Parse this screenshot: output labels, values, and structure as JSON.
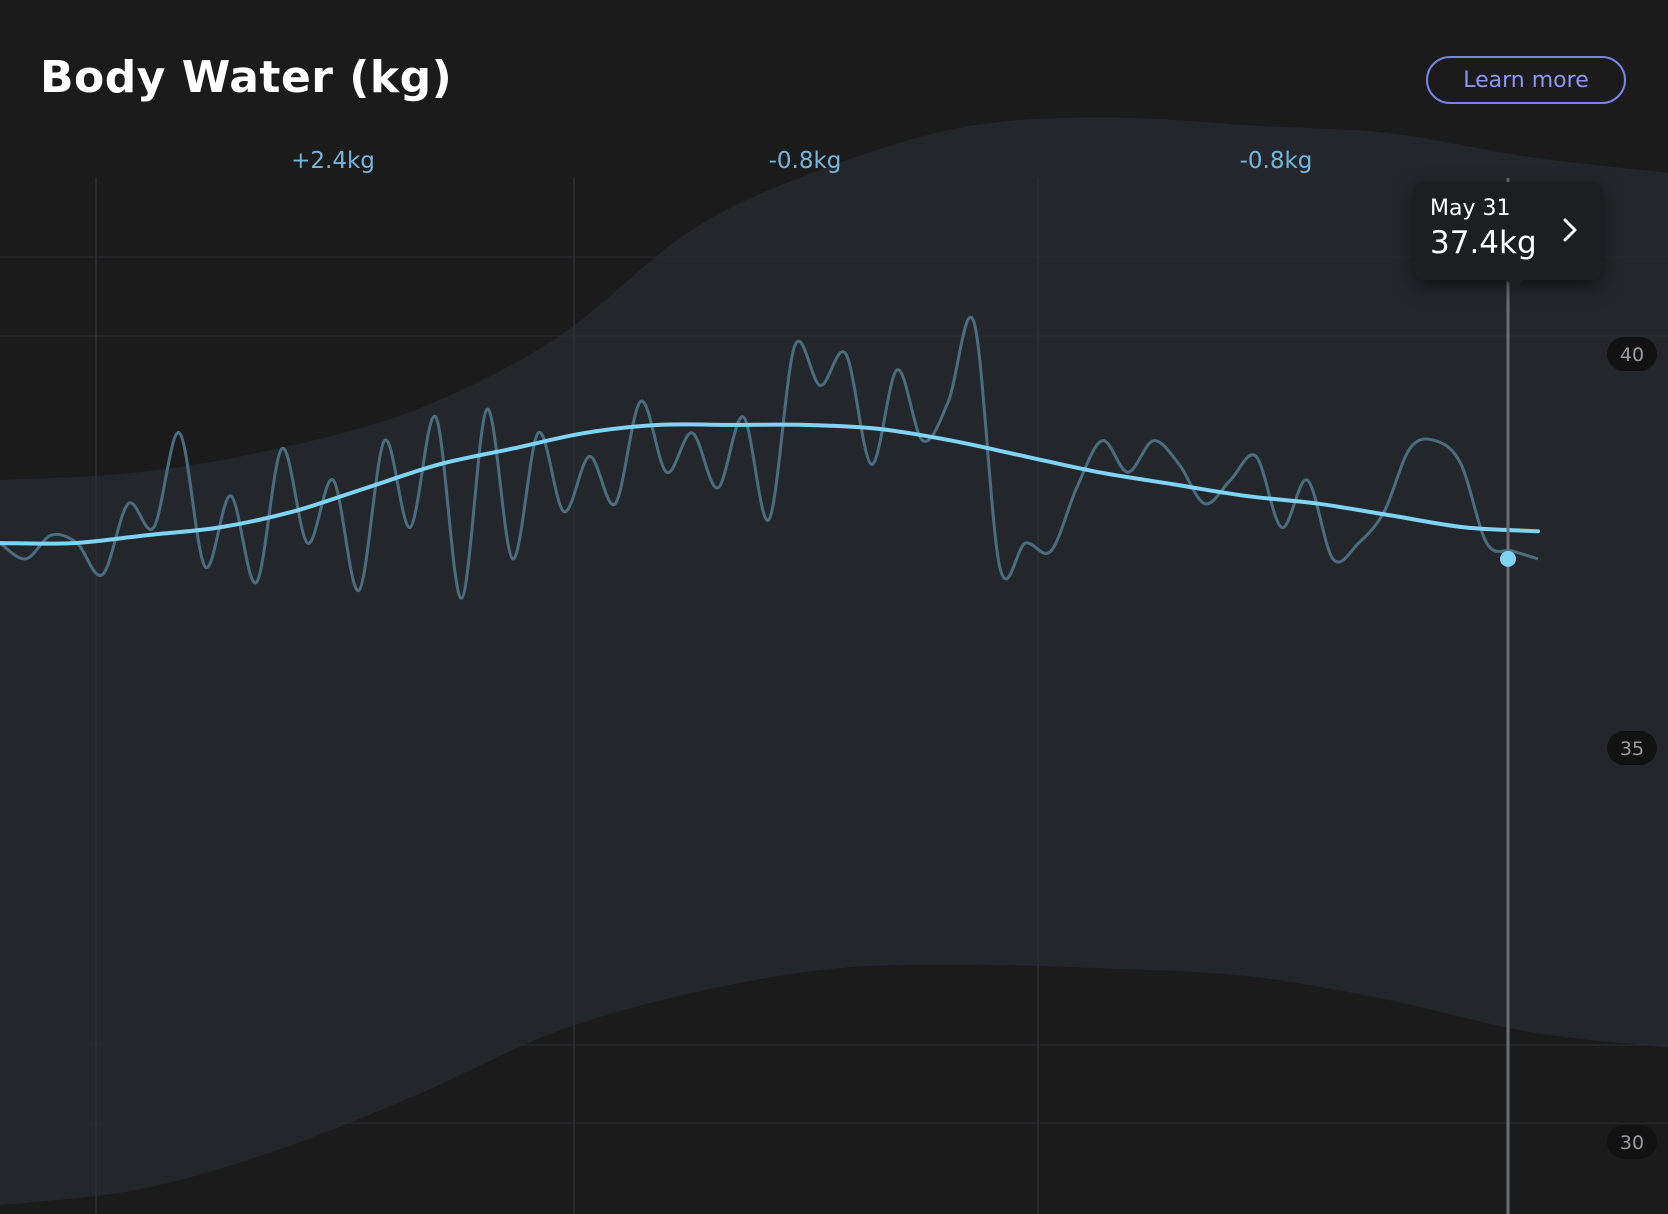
{
  "header": {
    "title": "Body Water (kg)",
    "learn_more_label": "Learn more"
  },
  "tooltip": {
    "date": "May 31",
    "value": "37.4kg",
    "icon": "chevron-right-icon"
  },
  "colors": {
    "background": "#1b1b1c",
    "band": "#23272c",
    "trend": "#7fd3f5",
    "raw": "#4a6d80",
    "delta_text": "#74b6de",
    "accent": "#7b83e6"
  },
  "chart_data": {
    "type": "line",
    "title": "Body Water (kg)",
    "xlabel": "",
    "ylabel": "",
    "ylim": [
      28.9,
      43.5
    ],
    "y_ticks": [
      {
        "value": 40,
        "label": "40"
      },
      {
        "value": 35,
        "label": "35"
      },
      {
        "value": 30,
        "label": "30"
      }
    ],
    "period_changes": [
      "+2.4kg",
      "-0.8kg",
      "-0.8kg"
    ],
    "grid": true,
    "normal_range": {
      "upper": [
        38.4,
        38.5,
        38.8,
        39.3,
        40.2,
        41.6,
        42.4,
        42.9,
        43.0,
        42.9,
        42.8,
        42.5,
        42.3
      ],
      "lower": [
        29.2,
        29.4,
        29.9,
        30.6,
        31.4,
        31.9,
        32.2,
        32.25,
        32.2,
        32.1,
        31.8,
        31.4,
        31.2
      ]
    },
    "series": [
      {
        "role": "trend",
        "values": [
          37.6,
          37.6,
          37.7,
          37.8,
          38.0,
          38.3,
          38.6,
          38.8,
          39.0,
          39.1,
          39.1,
          39.1,
          39.05,
          38.9,
          38.7,
          38.5,
          38.35,
          38.2,
          38.1,
          37.95,
          37.8,
          37.75
        ]
      },
      {
        "role": "raw",
        "values": [
          37.6,
          37.4,
          37.7,
          37.6,
          37.2,
          38.1,
          37.8,
          39.0,
          37.3,
          38.2,
          37.1,
          38.8,
          37.6,
          38.4,
          37.0,
          38.9,
          37.8,
          39.2,
          36.9,
          39.3,
          37.4,
          39.0,
          38.0,
          38.7,
          38.1,
          39.4,
          38.5,
          39.0,
          38.3,
          39.2,
          37.9,
          40.1,
          39.6,
          40.0,
          38.6,
          39.8,
          38.9,
          39.4,
          40.4,
          37.3,
          37.6,
          37.5,
          38.3,
          38.9,
          38.5,
          38.9,
          38.6,
          38.1,
          38.4,
          38.7,
          37.8,
          38.4,
          37.4,
          37.6,
          38.0,
          38.8,
          38.9,
          38.6,
          37.6,
          37.5,
          37.4
        ]
      }
    ],
    "highlighted_point": {
      "date": "May 31",
      "value": 37.4
    }
  }
}
